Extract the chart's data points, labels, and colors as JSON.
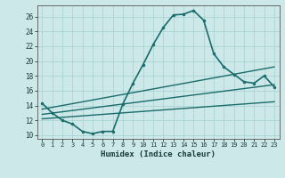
{
  "title": "",
  "xlabel": "Humidex (Indice chaleur)",
  "ylabel": "",
  "bg_color": "#cce8e8",
  "line_color": "#1a6b6b",
  "xlim": [
    -0.5,
    23.5
  ],
  "ylim": [
    9.5,
    27.5
  ],
  "xticks": [
    0,
    1,
    2,
    3,
    4,
    5,
    6,
    7,
    8,
    9,
    10,
    11,
    12,
    13,
    14,
    15,
    16,
    17,
    18,
    19,
    20,
    21,
    22,
    23
  ],
  "yticks": [
    10,
    12,
    14,
    16,
    18,
    20,
    22,
    24,
    26
  ],
  "grid_color": "#aad4d4",
  "series": [
    {
      "x": [
        0,
        1,
        2,
        3,
        4,
        5,
        6,
        7,
        8,
        9,
        10,
        11,
        12,
        13,
        14,
        15,
        16,
        17,
        18,
        19,
        20,
        21,
        22,
        23
      ],
      "y": [
        14.3,
        13.0,
        12.0,
        11.5,
        10.5,
        10.2,
        10.5,
        10.5,
        14.2,
        17.0,
        19.5,
        22.2,
        24.5,
        26.2,
        26.3,
        26.8,
        25.5,
        21.0,
        19.2,
        18.2,
        17.2,
        17.0,
        18.0,
        16.5
      ],
      "marker": "o",
      "markersize": 2.0,
      "linewidth": 1.2
    },
    {
      "x": [
        0,
        23
      ],
      "y": [
        13.5,
        19.2
      ],
      "marker": null,
      "linewidth": 1.0
    },
    {
      "x": [
        0,
        23
      ],
      "y": [
        12.8,
        16.8
      ],
      "marker": null,
      "linewidth": 1.0
    },
    {
      "x": [
        0,
        23
      ],
      "y": [
        12.2,
        14.5
      ],
      "marker": null,
      "linewidth": 1.0
    }
  ]
}
